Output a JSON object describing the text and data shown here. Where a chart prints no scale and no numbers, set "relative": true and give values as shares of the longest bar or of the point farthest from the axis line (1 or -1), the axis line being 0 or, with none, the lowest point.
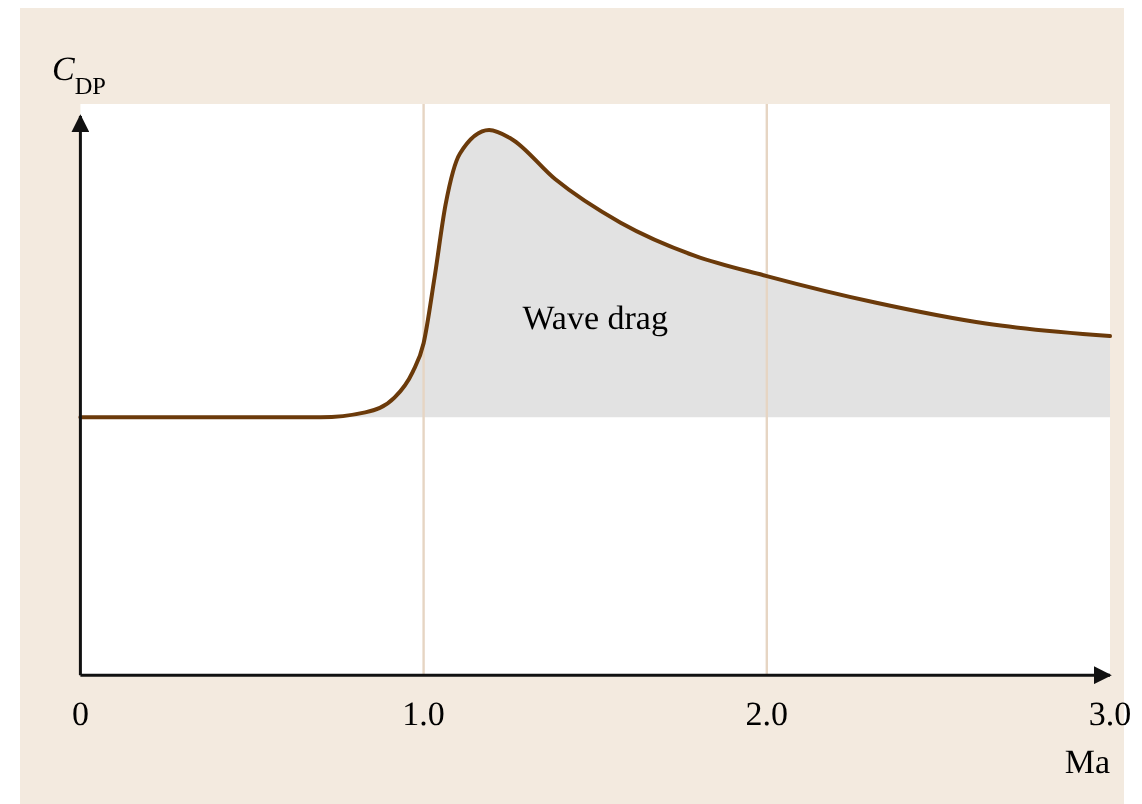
{
  "chart_data": {
    "type": "line",
    "relative": true,
    "xlabel": "Ma",
    "ylabel": "C$_{DP}$",
    "x": [
      0,
      0.7,
      0.83,
      0.915,
      0.968,
      1.0,
      1.032,
      1.064,
      1.106,
      1.191,
      1.255,
      1.383,
      1.574,
      1.787,
      2.0,
      2.319,
      2.638,
      3.0
    ],
    "xlim": [
      0,
      3.0
    ],
    "xticks": [
      0,
      {
        "value": 1,
        "label": "1.0"
      },
      {
        "value": 2,
        "label": "2.0"
      },
      {
        "value": 3,
        "label": "3.0"
      }
    ],
    "grid": "x",
    "marker": "none",
    "line_style": "solid",
    "series": [
      {
        "color": "#6b3a0a",
        "values": [
          0.473,
          0.473,
          0.482,
          0.509,
          0.556,
          0.609,
          0.73,
          0.863,
          0.957,
          1,
          0.984,
          0.91,
          0.83,
          0.77,
          0.732,
          0.683,
          0.645,
          0.622
        ],
        "lower": [
          0.473,
          0.473,
          0.473,
          0.473,
          0.473,
          0.473,
          0.473,
          0.473,
          0.473,
          0.473,
          0.473,
          0.473,
          0.473,
          0.473,
          0.473,
          0.473,
          0.473,
          0.473
        ],
        "upper": [
          0.473,
          0.473,
          0.482,
          0.509,
          0.556,
          0.609,
          0.73,
          0.863,
          0.957,
          1,
          0.984,
          0.91,
          0.83,
          0.77,
          0.732,
          0.683,
          0.645,
          0.622
        ]
      }
    ],
    "annotations": [
      "Wave drag"
    ]
  }
}
